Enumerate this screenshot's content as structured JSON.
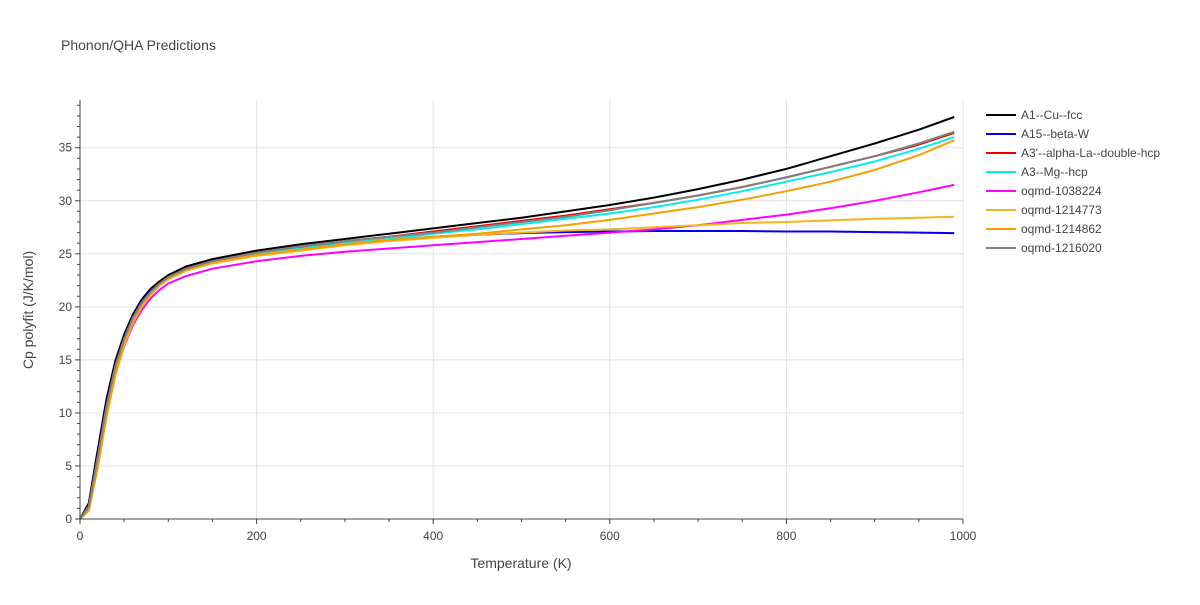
{
  "chart_data": {
    "type": "line",
    "title": "Phonon/QHA Predictions",
    "xlabel": "Temperature (K)",
    "ylabel": "Cp polyfit (J/K/mol)",
    "xlim": [
      0,
      1000
    ],
    "ylim": [
      0,
      39.5
    ],
    "x_ticks": [
      0,
      200,
      400,
      600,
      800,
      1000
    ],
    "y_ticks": [
      0,
      5,
      10,
      15,
      20,
      25,
      30,
      35
    ],
    "grid": true,
    "legend_position": "right",
    "x": [
      0,
      10,
      20,
      30,
      40,
      50,
      60,
      70,
      80,
      90,
      100,
      120,
      150,
      200,
      250,
      300,
      350,
      400,
      450,
      500,
      550,
      600,
      650,
      700,
      750,
      800,
      850,
      900,
      950,
      990
    ],
    "series": [
      {
        "name": "A1--Cu--fcc",
        "color": "#000000",
        "values": [
          0,
          1.5,
          6.5,
          11.3,
          14.9,
          17.4,
          19.3,
          20.7,
          21.7,
          22.4,
          23.0,
          23.8,
          24.5,
          25.3,
          25.9,
          26.4,
          26.9,
          27.4,
          27.9,
          28.4,
          29.0,
          29.6,
          30.3,
          31.1,
          32.0,
          33.0,
          34.2,
          35.4,
          36.7,
          37.9
        ]
      },
      {
        "name": "A15--beta-W",
        "color": "#0000ee",
        "values": [
          0,
          1.3,
          6.0,
          10.8,
          14.5,
          17.1,
          19.1,
          20.5,
          21.5,
          22.2,
          22.8,
          23.6,
          24.3,
          25.1,
          25.6,
          26.0,
          26.3,
          26.6,
          26.8,
          26.95,
          27.05,
          27.1,
          27.15,
          27.15,
          27.15,
          27.1,
          27.1,
          27.05,
          27.0,
          26.95
        ]
      },
      {
        "name": "A3'--alpha-La--double-hcp",
        "color": "#ee0000",
        "values": [
          0,
          1.2,
          5.8,
          10.6,
          14.4,
          17.0,
          19.0,
          20.4,
          21.4,
          22.2,
          22.8,
          23.6,
          24.3,
          25.1,
          25.7,
          26.2,
          26.6,
          27.1,
          27.6,
          28.1,
          28.6,
          29.2,
          29.8,
          30.5,
          31.3,
          32.2,
          33.2,
          34.2,
          35.3,
          36.4
        ]
      },
      {
        "name": "A3--Mg--hcp",
        "color": "#00eeee",
        "values": [
          0,
          1.1,
          5.5,
          10.3,
          14.2,
          16.9,
          18.9,
          20.3,
          21.3,
          22.1,
          22.7,
          23.5,
          24.2,
          25.0,
          25.5,
          26.0,
          26.4,
          26.9,
          27.3,
          27.8,
          28.3,
          28.8,
          29.4,
          30.1,
          30.9,
          31.8,
          32.7,
          33.7,
          34.9,
          36.0
        ]
      },
      {
        "name": "oqmd-1038224",
        "color": "#ff00ff",
        "values": [
          0,
          0.9,
          5.0,
          9.8,
          13.6,
          16.3,
          18.3,
          19.7,
          20.8,
          21.6,
          22.2,
          22.9,
          23.6,
          24.3,
          24.8,
          25.2,
          25.5,
          25.8,
          26.1,
          26.4,
          26.7,
          27.0,
          27.3,
          27.7,
          28.2,
          28.7,
          29.3,
          30.0,
          30.8,
          31.5
        ]
      },
      {
        "name": "oqmd-1214773",
        "color": "#f5b41e",
        "values": [
          0,
          0.8,
          4.8,
          9.6,
          13.5,
          16.4,
          18.5,
          20.0,
          21.1,
          22.0,
          22.6,
          23.4,
          24.1,
          24.8,
          25.3,
          25.8,
          26.2,
          26.5,
          26.8,
          27.0,
          27.2,
          27.3,
          27.5,
          27.7,
          27.9,
          28.0,
          28.15,
          28.3,
          28.4,
          28.5
        ]
      },
      {
        "name": "oqmd-1214862",
        "color": "#f5a000",
        "values": [
          0,
          0.8,
          4.8,
          9.7,
          13.7,
          16.6,
          18.7,
          20.2,
          21.3,
          22.1,
          22.7,
          23.5,
          24.2,
          24.9,
          25.4,
          25.9,
          26.3,
          26.6,
          26.9,
          27.3,
          27.7,
          28.2,
          28.8,
          29.4,
          30.1,
          30.9,
          31.8,
          32.9,
          34.3,
          35.7
        ]
      },
      {
        "name": "oqmd-1216020",
        "color": "#808080",
        "values": [
          0,
          1.2,
          5.8,
          10.6,
          14.4,
          17.0,
          19.0,
          20.4,
          21.4,
          22.2,
          22.8,
          23.6,
          24.3,
          25.1,
          25.7,
          26.2,
          26.6,
          27.0,
          27.5,
          28.0,
          28.5,
          29.1,
          29.8,
          30.5,
          31.3,
          32.2,
          33.2,
          34.2,
          35.4,
          36.5
        ]
      }
    ]
  }
}
